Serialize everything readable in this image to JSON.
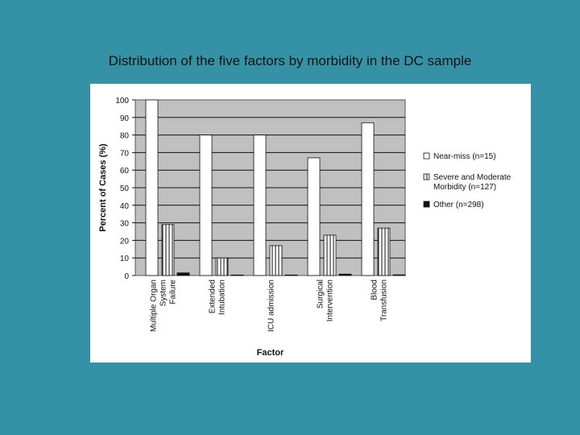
{
  "slide": {
    "title": "Distribution of the five factors by morbidity in the DC sample"
  },
  "chart_data": {
    "type": "bar",
    "title": "",
    "xlabel": "Factor",
    "ylabel": "Percent of Cases (%)",
    "ylim": [
      0,
      100
    ],
    "yticks": [
      0,
      10,
      20,
      30,
      40,
      50,
      60,
      70,
      80,
      90,
      100
    ],
    "grid": true,
    "legend_position": "right",
    "categories": [
      [
        "Multiple Organ",
        "System",
        "Failure"
      ],
      [
        "Extended",
        "Intubation"
      ],
      [
        "ICU admission"
      ],
      [
        "Surgical",
        "Intervention"
      ],
      [
        "Blood",
        "Transfusion"
      ]
    ],
    "series": [
      {
        "name": "Near-miss (n=15)",
        "color": "#ffffff",
        "pattern": "plain",
        "values": [
          100,
          80,
          80,
          67,
          87
        ]
      },
      {
        "name": "Severe and Moderate Morbidity (n=127)",
        "color": "#ffffff",
        "pattern": "striped",
        "values": [
          29,
          10,
          17,
          23,
          27
        ]
      },
      {
        "name": "Other (n=298)",
        "color": "#111111",
        "pattern": "solid",
        "values": [
          1.5,
          0.3,
          0.3,
          0.8,
          0.4
        ]
      }
    ],
    "legend_lines": [
      [
        "Near-miss (n=15)"
      ],
      [
        "Severe and Moderate",
        "Morbidity (n=127)"
      ],
      [
        "Other (n=298)"
      ]
    ]
  }
}
